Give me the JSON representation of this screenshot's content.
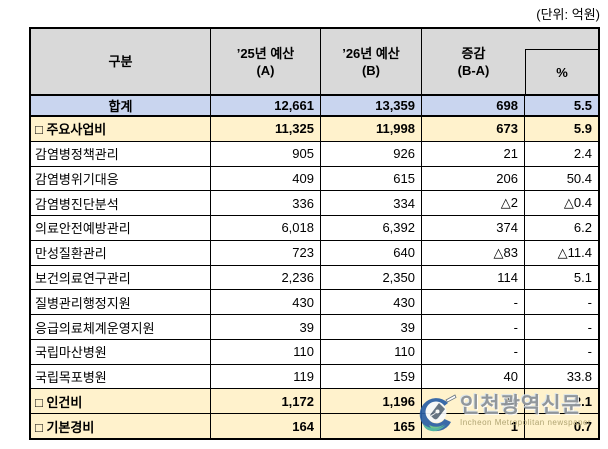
{
  "unit_note": "(단위: 억원)",
  "table": {
    "header": {
      "category": "구분",
      "y25_line1": "’25년 예산",
      "y25_line2": "(A)",
      "y26_line1": "’26년 예산",
      "y26_line2": "(B)",
      "diff_line1": "증감",
      "diff_line2": "(B-A)",
      "pct": "%"
    },
    "rows": [
      {
        "label": "합계",
        "a": "12,661",
        "b": "13,359",
        "diff": "698",
        "pct": "5.5",
        "style": "total"
      },
      {
        "label": "□ 주요사업비",
        "a": "11,325",
        "b": "11,998",
        "diff": "673",
        "pct": "5.9",
        "style": "section"
      },
      {
        "label": "감염병정책관리",
        "a": "905",
        "b": "926",
        "diff": "21",
        "pct": "2.4",
        "style": "normal"
      },
      {
        "label": "감염병위기대응",
        "a": "409",
        "b": "615",
        "diff": "206",
        "pct": "50.4",
        "style": "normal"
      },
      {
        "label": "감염병진단분석",
        "a": "336",
        "b": "334",
        "diff": "△2",
        "pct": "△0.4",
        "style": "normal"
      },
      {
        "label": "의료안전예방관리",
        "a": "6,018",
        "b": "6,392",
        "diff": "374",
        "pct": "6.2",
        "style": "normal"
      },
      {
        "label": "만성질환관리",
        "a": "723",
        "b": "640",
        "diff": "△83",
        "pct": "△11.4",
        "style": "normal"
      },
      {
        "label": "보건의료연구관리",
        "a": "2,236",
        "b": "2,350",
        "diff": "114",
        "pct": "5.1",
        "style": "normal"
      },
      {
        "label": "질병관리행정지원",
        "a": "430",
        "b": "430",
        "diff": "-",
        "pct": "-",
        "style": "normal"
      },
      {
        "label": "응급의료체계운영지원",
        "a": "39",
        "b": "39",
        "diff": "-",
        "pct": "-",
        "style": "normal"
      },
      {
        "label": "국립마산병원",
        "a": "110",
        "b": "110",
        "diff": "-",
        "pct": "-",
        "style": "normal"
      },
      {
        "label": "국립목포병원",
        "a": "119",
        "b": "159",
        "diff": "40",
        "pct": "33.8",
        "style": "normal"
      },
      {
        "label": "□ 인건비",
        "a": "1,172",
        "b": "1,196",
        "diff": "24",
        "pct": "2.1",
        "style": "section"
      },
      {
        "label": "□ 기본경비",
        "a": "164",
        "b": "165",
        "diff": "1",
        "pct": "0.7",
        "style": "section"
      }
    ]
  },
  "colors": {
    "header_bg": "#D9D9D9",
    "total_row_bg": "#C9D5EF",
    "section_row_bg": "#FFF2CC",
    "border": "#000000",
    "watermark_text": "#80868C"
  },
  "watermark": {
    "title": "인천광역신문",
    "subtitle": "Incheon Metropolitan newspaper",
    "logo": "pen-nib-circle"
  }
}
